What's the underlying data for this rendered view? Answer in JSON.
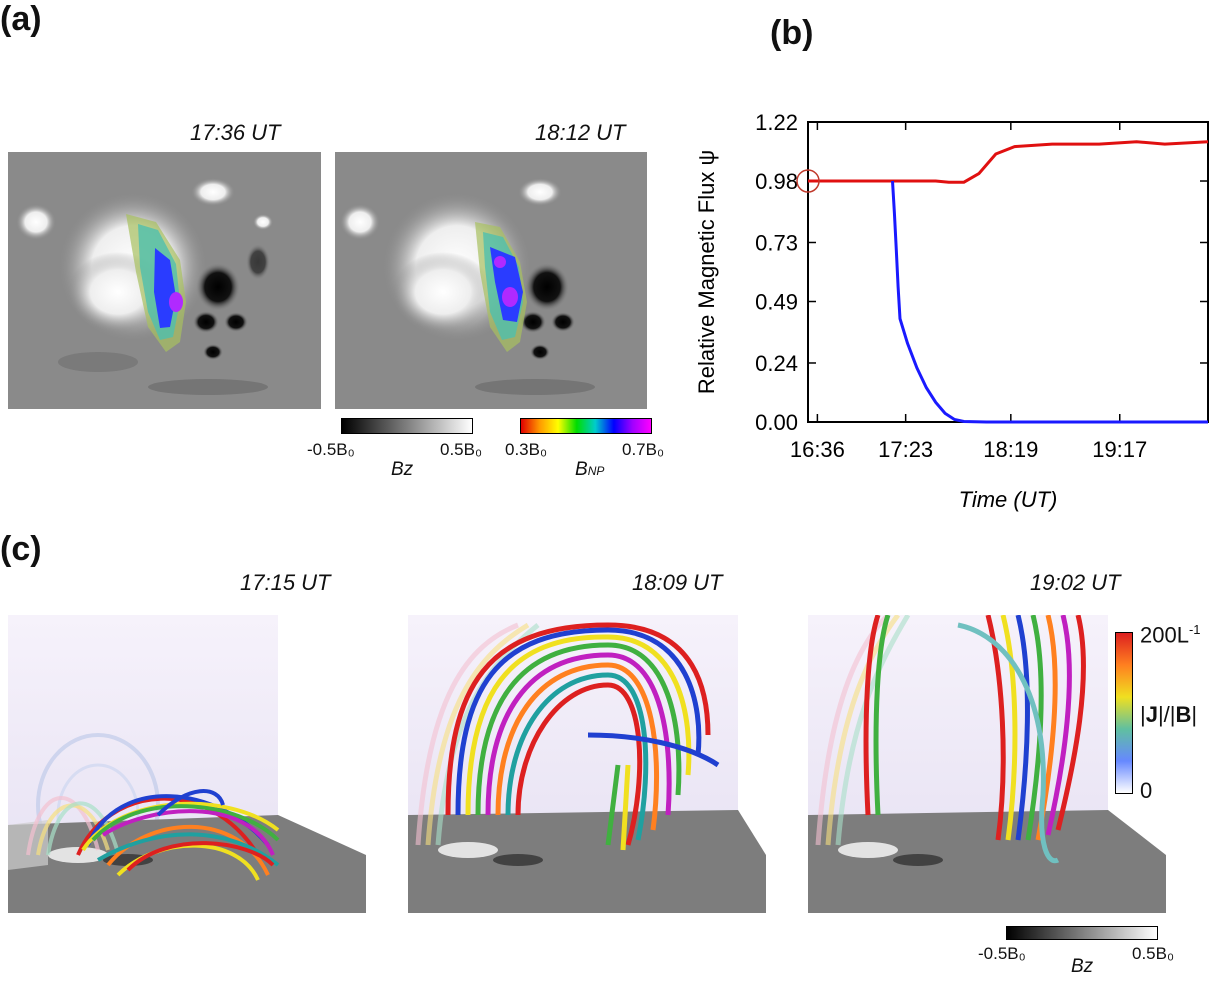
{
  "figure": {
    "panel_a": {
      "label": "(a)",
      "times": [
        "17:36 UT",
        "18:12 UT"
      ],
      "colorbar_bz": {
        "min": "-0.5B₀",
        "max": "0.5B₀",
        "var": "Bz"
      },
      "colorbar_bnp": {
        "min": "0.3B₀",
        "max": "0.7B₀",
        "var": "B",
        "var_sub": "NP"
      }
    },
    "panel_b": {
      "label": "(b)"
    },
    "panel_c": {
      "label": "(c)",
      "times": [
        "17:15 UT",
        "18:09 UT",
        "19:02 UT"
      ],
      "colorbar_j": {
        "max": "200L",
        "max_sup": "-1",
        "min": "0",
        "var_pre": "|",
        "var_j": "J",
        "var_mid": "|/|",
        "var_b": "B",
        "var_post": "|"
      },
      "colorbar_bz": {
        "min": "-0.5B₀",
        "max": "0.5B₀",
        "var": "Bz"
      }
    }
  },
  "chart_data": {
    "type": "line",
    "title": "",
    "xlabel": "Time (UT)",
    "ylabel": "Relative Magnetic Flux ψ",
    "x_ticks": [
      {
        "t": 0,
        "label": "16:36"
      },
      {
        "t": 47,
        "label": "17:23"
      },
      {
        "t": 103,
        "label": "18:19"
      },
      {
        "t": 161,
        "label": "19:17"
      }
    ],
    "x_unit": "minutes after 16:36",
    "xlim": [
      -5,
      208
    ],
    "ylim": [
      0.0,
      1.22
    ],
    "y_ticks": [
      0.0,
      0.24,
      0.49,
      0.73,
      0.98,
      1.22
    ],
    "y_tick_labels": [
      "0.00",
      "0.24",
      "0.49",
      "0.73",
      "0.98",
      "1.22"
    ],
    "series": [
      {
        "name": "red",
        "color": "#e01010",
        "points": [
          [
            -5,
            0.98
          ],
          [
            10,
            0.98
          ],
          [
            30,
            0.98
          ],
          [
            50,
            0.98
          ],
          [
            63,
            0.98
          ],
          [
            70,
            0.975
          ],
          [
            78,
            0.975
          ],
          [
            86,
            1.01
          ],
          [
            95,
            1.09
          ],
          [
            105,
            1.12
          ],
          [
            125,
            1.13
          ],
          [
            150,
            1.13
          ],
          [
            170,
            1.14
          ],
          [
            185,
            1.13
          ],
          [
            208,
            1.14
          ]
        ]
      },
      {
        "name": "blue",
        "color": "#1a1aff",
        "points": [
          [
            40,
            0.98
          ],
          [
            41,
            0.85
          ],
          [
            42,
            0.7
          ],
          [
            43,
            0.55
          ],
          [
            44,
            0.42
          ],
          [
            48,
            0.32
          ],
          [
            53,
            0.22
          ],
          [
            58,
            0.14
          ],
          [
            63,
            0.08
          ],
          [
            68,
            0.035
          ],
          [
            73,
            0.01
          ],
          [
            78,
            0.002
          ],
          [
            90,
            0.0
          ],
          [
            150,
            0.0
          ],
          [
            208,
            0.0
          ]
        ]
      }
    ],
    "marker": {
      "t": -5,
      "value": 0.98,
      "shape": "circle",
      "color": "#c0392b"
    }
  }
}
